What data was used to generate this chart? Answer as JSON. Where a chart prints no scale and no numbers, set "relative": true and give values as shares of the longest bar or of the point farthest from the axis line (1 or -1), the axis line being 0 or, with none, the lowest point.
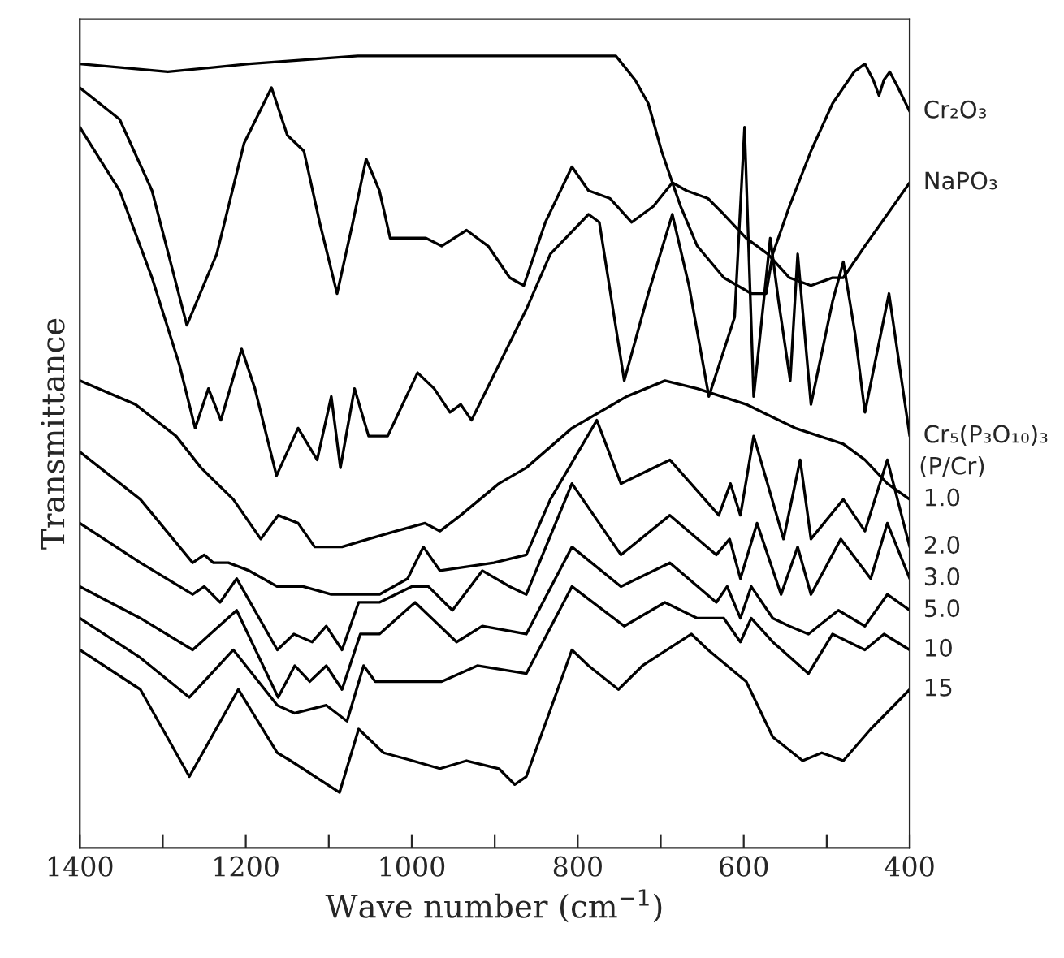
{
  "chart_data": {
    "type": "line",
    "relative": true,
    "xlabel": "Wave number (cm$^{−1}$)",
    "ylabel": "Transmittance",
    "xlim": [
      1400,
      400
    ],
    "xticks": [
      1400,
      {
        "value": 1300,
        "label": null
      },
      1200,
      {
        "value": 1100,
        "label": null
      },
      1000,
      {
        "value": 900,
        "label": null
      },
      800,
      {
        "value": 700,
        "label": null
      },
      600,
      {
        "value": 500,
        "label": null
      },
      400
    ],
    "annotations": [
      "(P/Cr)"
    ],
    "series": [
      {
        "name": "Cr₂O₃",
        "color": "#000000",
        "x": [
          1400,
          1294,
          1196,
          1065,
          872,
          754,
          731,
          715,
          699,
          686,
          676,
          656,
          624,
          591,
          573,
          565,
          545,
          519,
          493,
          467,
          454,
          444,
          437,
          431,
          424,
          414,
          400
        ],
        "values": [
          0.99,
          0.98,
          0.99,
          1.0,
          1.0,
          1.0,
          0.97,
          0.94,
          0.88,
          0.84,
          0.81,
          0.76,
          0.72,
          0.7,
          0.7,
          0.75,
          0.81,
          0.88,
          0.94,
          0.98,
          0.99,
          0.97,
          0.95,
          0.97,
          0.98,
          0.96,
          0.93
        ]
      },
      {
        "name": "NaPO₃",
        "color": "#000000",
        "x": [
          1400,
          1352,
          1313,
          1271,
          1235,
          1202,
          1169,
          1150,
          1130,
          1111,
          1090,
          1071,
          1055,
          1039,
          1026,
          999,
          983,
          964,
          934,
          908,
          882,
          865,
          839,
          807,
          787,
          761,
          735,
          709,
          686,
          669,
          643,
          624,
          597,
          571,
          545,
          519,
          493,
          480,
          454,
          427,
          400
        ],
        "values": [
          0.96,
          0.92,
          0.83,
          0.66,
          0.75,
          0.89,
          0.96,
          0.9,
          0.88,
          0.79,
          0.7,
          0.79,
          0.87,
          0.83,
          0.77,
          0.77,
          0.77,
          0.76,
          0.78,
          0.76,
          0.72,
          0.71,
          0.79,
          0.86,
          0.83,
          0.82,
          0.79,
          0.81,
          0.84,
          0.83,
          0.82,
          0.8,
          0.77,
          0.75,
          0.72,
          0.71,
          0.72,
          0.72,
          0.76,
          0.8,
          0.84
        ]
      },
      {
        "name": "Cr₅(P₃O₁₀)₃",
        "color": "#000000",
        "x": [
          1400,
          1352,
          1313,
          1280,
          1261,
          1245,
          1230,
          1205,
          1189,
          1163,
          1137,
          1114,
          1097,
          1086,
          1069,
          1052,
          1039,
          1029,
          993,
          973,
          954,
          941,
          928,
          895,
          862,
          833,
          787,
          774,
          744,
          715,
          686,
          666,
          642,
          611,
          599,
          588,
          568,
          558,
          544,
          535,
          519,
          493,
          480,
          466,
          454,
          425,
          400
        ],
        "values": [
          0.91,
          0.83,
          0.72,
          0.61,
          0.53,
          0.58,
          0.54,
          0.63,
          0.58,
          0.47,
          0.53,
          0.49,
          0.57,
          0.48,
          0.58,
          0.52,
          0.52,
          0.52,
          0.6,
          0.58,
          0.55,
          0.56,
          0.54,
          0.61,
          0.68,
          0.75,
          0.8,
          0.79,
          0.59,
          0.7,
          0.8,
          0.71,
          0.57,
          0.67,
          0.91,
          0.57,
          0.77,
          0.69,
          0.59,
          0.75,
          0.56,
          0.69,
          0.74,
          0.65,
          0.55,
          0.7,
          0.52
        ]
      },
      {
        "name": "1.0",
        "color": "#000000",
        "x": [
          1400,
          1333,
          1284,
          1254,
          1215,
          1182,
          1161,
          1137,
          1117,
          1101,
          1084,
          1052,
          1019,
          984,
          966,
          941,
          895,
          862,
          807,
          741,
          695,
          656,
          597,
          538,
          509,
          480,
          454,
          427,
          400
        ],
        "values": [
          0.59,
          0.56,
          0.52,
          0.48,
          0.44,
          0.39,
          0.42,
          0.41,
          0.38,
          0.38,
          0.38,
          0.39,
          0.4,
          0.41,
          0.4,
          0.42,
          0.46,
          0.48,
          0.53,
          0.57,
          0.59,
          0.58,
          0.56,
          0.53,
          0.52,
          0.51,
          0.49,
          0.46,
          0.44
        ]
      },
      {
        "name": "2.0",
        "color": "#000000",
        "x": [
          1400,
          1327,
          1264,
          1250,
          1239,
          1221,
          1196,
          1162,
          1131,
          1097,
          1064,
          1039,
          1005,
          986,
          966,
          901,
          862,
          833,
          777,
          748,
          689,
          630,
          616,
          604,
          588,
          552,
          532,
          519,
          480,
          454,
          427,
          400
        ],
        "values": [
          0.5,
          0.44,
          0.36,
          0.37,
          0.36,
          0.36,
          0.35,
          0.33,
          0.33,
          0.32,
          0.32,
          0.32,
          0.34,
          0.38,
          0.35,
          0.36,
          0.37,
          0.44,
          0.54,
          0.46,
          0.49,
          0.42,
          0.46,
          0.42,
          0.52,
          0.39,
          0.49,
          0.39,
          0.44,
          0.4,
          0.49,
          0.38
        ]
      },
      {
        "name": "3.0",
        "color": "#000000",
        "x": [
          1400,
          1327,
          1264,
          1250,
          1231,
          1211,
          1162,
          1142,
          1120,
          1103,
          1084,
          1064,
          1039,
          1000,
          980,
          951,
          915,
          882,
          862,
          807,
          748,
          689,
          633,
          617,
          604,
          584,
          555,
          535,
          519,
          483,
          447,
          427,
          400
        ],
        "values": [
          0.41,
          0.36,
          0.32,
          0.33,
          0.31,
          0.34,
          0.25,
          0.27,
          0.26,
          0.28,
          0.25,
          0.31,
          0.31,
          0.33,
          0.33,
          0.3,
          0.35,
          0.33,
          0.32,
          0.46,
          0.37,
          0.42,
          0.37,
          0.39,
          0.34,
          0.41,
          0.32,
          0.38,
          0.32,
          0.39,
          0.34,
          0.41,
          0.34
        ]
      },
      {
        "name": "5.0",
        "color": "#000000",
        "x": [
          1400,
          1327,
          1264,
          1211,
          1161,
          1141,
          1123,
          1103,
          1084,
          1062,
          1039,
          996,
          946,
          915,
          862,
          807,
          748,
          689,
          633,
          620,
          604,
          591,
          565,
          545,
          522,
          486,
          454,
          427,
          400
        ],
        "values": [
          0.33,
          0.29,
          0.25,
          0.3,
          0.19,
          0.23,
          0.21,
          0.23,
          0.2,
          0.27,
          0.27,
          0.31,
          0.26,
          0.28,
          0.27,
          0.38,
          0.33,
          0.36,
          0.31,
          0.33,
          0.29,
          0.33,
          0.29,
          0.28,
          0.27,
          0.3,
          0.28,
          0.32,
          0.3
        ]
      },
      {
        "name": "10",
        "color": "#000000",
        "x": [
          1400,
          1327,
          1268,
          1215,
          1162,
          1141,
          1103,
          1078,
          1058,
          1044,
          964,
          921,
          862,
          807,
          744,
          695,
          656,
          624,
          604,
          591,
          565,
          522,
          493,
          454,
          431,
          400
        ],
        "values": [
          0.29,
          0.24,
          0.19,
          0.25,
          0.18,
          0.17,
          0.18,
          0.16,
          0.23,
          0.21,
          0.21,
          0.23,
          0.22,
          0.33,
          0.28,
          0.31,
          0.29,
          0.29,
          0.26,
          0.29,
          0.26,
          0.22,
          0.27,
          0.25,
          0.27,
          0.25
        ]
      },
      {
        "name": "15",
        "color": "#000000",
        "x": [
          1400,
          1327,
          1268,
          1209,
          1162,
          1146,
          1087,
          1064,
          1034,
          999,
          966,
          934,
          895,
          876,
          862,
          807,
          787,
          751,
          722,
          663,
          643,
          597,
          565,
          529,
          506,
          480,
          447,
          400
        ],
        "values": [
          0.25,
          0.2,
          0.09,
          0.2,
          0.12,
          0.11,
          0.07,
          0.15,
          0.12,
          0.11,
          0.1,
          0.11,
          0.1,
          0.08,
          0.09,
          0.25,
          0.23,
          0.2,
          0.23,
          0.27,
          0.25,
          0.21,
          0.14,
          0.11,
          0.12,
          0.11,
          0.15,
          0.2
        ]
      }
    ]
  }
}
